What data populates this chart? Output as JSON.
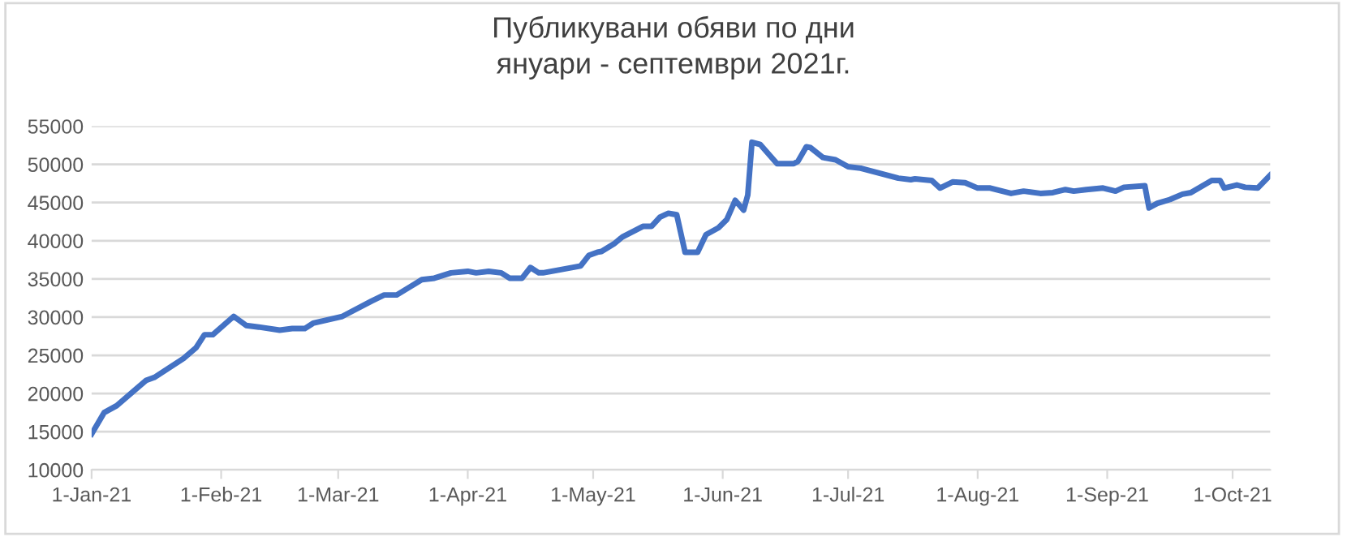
{
  "chart_data": {
    "type": "line",
    "title": "Публикувани обяви по дни\nянуари - септември 2021г.",
    "x": [
      "2021-01-01",
      "2021-01-04",
      "2021-01-07",
      "2021-01-11",
      "2021-01-14",
      "2021-01-16",
      "2021-01-23",
      "2021-01-26",
      "2021-01-28",
      "2021-01-30",
      "2021-02-04",
      "2021-02-07",
      "2021-02-10",
      "2021-02-15",
      "2021-02-18",
      "2021-02-21",
      "2021-02-23",
      "2021-03-02",
      "2021-03-09",
      "2021-03-12",
      "2021-03-15",
      "2021-03-21",
      "2021-03-24",
      "2021-03-28",
      "2021-04-01",
      "2021-04-03",
      "2021-04-06",
      "2021-04-09",
      "2021-04-11",
      "2021-04-14",
      "2021-04-16",
      "2021-04-18",
      "2021-04-19",
      "2021-04-23",
      "2021-04-28",
      "2021-04-30",
      "2021-05-02",
      "2021-05-03",
      "2021-05-06",
      "2021-05-08",
      "2021-05-13",
      "2021-05-15",
      "2021-05-17",
      "2021-05-19",
      "2021-05-21",
      "2021-05-23",
      "2021-05-26",
      "2021-05-28",
      "2021-05-31",
      "2021-06-02",
      "2021-06-04",
      "2021-06-06",
      "2021-06-07",
      "2021-06-08",
      "2021-06-10",
      "2021-06-14",
      "2021-06-18",
      "2021-06-19",
      "2021-06-21",
      "2021-06-22",
      "2021-06-25",
      "2021-06-28",
      "2021-07-01",
      "2021-07-04",
      "2021-07-11",
      "2021-07-13",
      "2021-07-16",
      "2021-07-17",
      "2021-07-21",
      "2021-07-23",
      "2021-07-26",
      "2021-07-29",
      "2021-08-01",
      "2021-08-04",
      "2021-08-09",
      "2021-08-12",
      "2021-08-16",
      "2021-08-19",
      "2021-08-22",
      "2021-08-24",
      "2021-08-27",
      "2021-08-31",
      "2021-09-03",
      "2021-09-05",
      "2021-09-10",
      "2021-09-11",
      "2021-09-13",
      "2021-09-16",
      "2021-09-19",
      "2021-09-21",
      "2021-09-26",
      "2021-09-28",
      "2021-09-29",
      "2021-10-02",
      "2021-10-04",
      "2021-10-07",
      "2021-10-10"
    ],
    "series": [
      {
        "color": "#4472c4",
        "values": [
          14700,
          17500,
          18400,
          20300,
          21700,
          22100,
          24600,
          26000,
          27700,
          27700,
          30100,
          28900,
          28700,
          28300,
          28500,
          28500,
          29200,
          30100,
          32100,
          32900,
          32900,
          34900,
          35100,
          35800,
          36000,
          35800,
          36000,
          35800,
          35100,
          35100,
          36500,
          35800,
          35800,
          36200,
          36700,
          38100,
          38500,
          38600,
          39600,
          40500,
          41900,
          41900,
          43100,
          43600,
          43400,
          38500,
          38500,
          40800,
          41700,
          42800,
          45300,
          44000,
          46000,
          52900,
          52600,
          50100,
          50100,
          50400,
          52300,
          52200,
          50900,
          50600,
          49700,
          49500,
          48500,
          48200,
          48000,
          48100,
          47900,
          46900,
          47700,
          47600,
          46900,
          46900,
          46200,
          46500,
          46200,
          46300,
          46700,
          46500,
          46700,
          46900,
          46500,
          47000,
          47200,
          44300,
          44900,
          45400,
          46100,
          46300,
          47900,
          47900,
          46900,
          47300,
          47000,
          46900,
          48600
        ]
      }
    ],
    "xlim": [
      "2021-01-01",
      "2021-10-10"
    ],
    "xticks": [
      {
        "value": "2021-01-01",
        "label": "1-Jan-21"
      },
      {
        "value": "2021-02-01",
        "label": "1-Feb-21"
      },
      {
        "value": "2021-03-01",
        "label": "1-Mar-21"
      },
      {
        "value": "2021-04-01",
        "label": "1-Apr-21"
      },
      {
        "value": "2021-05-01",
        "label": "1-May-21"
      },
      {
        "value": "2021-06-01",
        "label": "1-Jun-21"
      },
      {
        "value": "2021-07-01",
        "label": "1-Jul-21"
      },
      {
        "value": "2021-08-01",
        "label": "1-Aug-21"
      },
      {
        "value": "2021-09-01",
        "label": "1-Sep-21"
      },
      {
        "value": "2021-10-01",
        "label": "1-Oct-21"
      }
    ],
    "ylim": [
      10000,
      55000
    ],
    "yticks": [
      10000,
      15000,
      20000,
      25000,
      30000,
      35000,
      40000,
      45000,
      50000,
      55000
    ],
    "grid": "y",
    "marker": "none",
    "line_style": "solid"
  }
}
